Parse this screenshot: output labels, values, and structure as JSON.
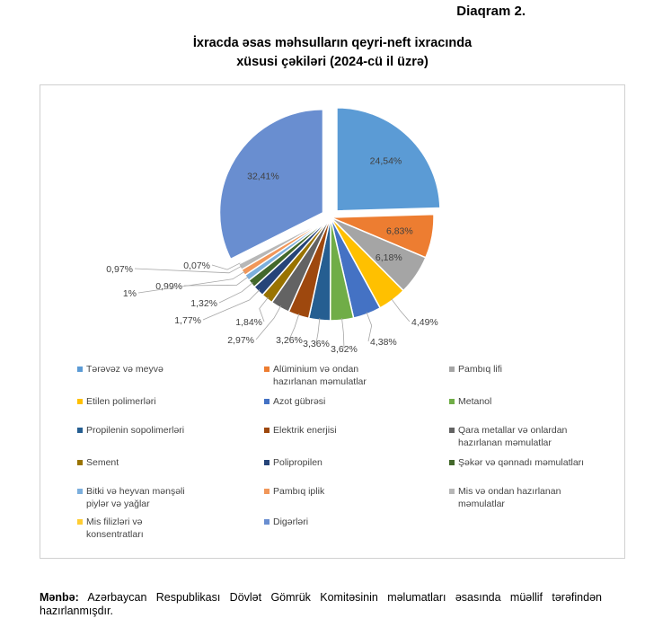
{
  "diagram_label": "Diaqram 2.",
  "chart_data": {
    "type": "pie",
    "title_line1": "İxracda əsas məhsulların qeyri-neft ixracında",
    "title_line2": "xüsusi çəkiləri (2024-cü il üzrə)",
    "slices": [
      {
        "name": "Tərəvəz və meyvə",
        "value": 24.54,
        "label": "24,54%",
        "color": "#5b9bd5"
      },
      {
        "name": "Alüminium və ondan\nhazırlanan məmulatlar",
        "value": 6.83,
        "label": "6,83%",
        "color": "#ed7d31"
      },
      {
        "name": "Pambıq lifi",
        "value": 6.18,
        "label": "6,18%",
        "color": "#a5a5a5"
      },
      {
        "name": "Etilen polimerləri",
        "value": 4.49,
        "label": "4,49%",
        "color": "#ffc000"
      },
      {
        "name": "Azot gübrəsi",
        "value": 4.38,
        "label": "4,38%",
        "color": "#4472c4"
      },
      {
        "name": "Metanol",
        "value": 3.62,
        "label": "3,62%",
        "color": "#70ad47"
      },
      {
        "name": "Propilenin sopolimerləri",
        "value": 3.36,
        "label": "3,36%",
        "color": "#255e91"
      },
      {
        "name": "Elektrik enerjisi",
        "value": 3.26,
        "label": "3,26%",
        "color": "#9e480e"
      },
      {
        "name": "Qara metallar və onlardan\nhazırlanan məmulatlar",
        "value": 2.97,
        "label": "2,97%",
        "color": "#636363"
      },
      {
        "name": "Sement",
        "value": 1.84,
        "label": "1,84%",
        "color": "#997300"
      },
      {
        "name": "Polipropilen",
        "value": 1.77,
        "label": "1,77%",
        "color": "#264478"
      },
      {
        "name": "Şəkər və qənnadı məmulatları",
        "value": 1.32,
        "label": "1,32%",
        "color": "#43682b"
      },
      {
        "name": "Bitki və heyvan mənşəli\npiylər və yağlar",
        "value": 0.99,
        "label": "0,99%",
        "color": "#7cafdd"
      },
      {
        "name": "Pambıq iplik",
        "value": 1.0,
        "label": "1%",
        "color": "#f1975a"
      },
      {
        "name": "Mis və ondan hazırlanan\nməmulatlar",
        "value": 0.97,
        "label": "0,97%",
        "color": "#b7b7b7"
      },
      {
        "name": "Mis filizləri və\nkonsentratları",
        "value": 0.07,
        "label": "0,07%",
        "color": "#ffcd33"
      },
      {
        "name": "Digərləri",
        "value": 32.41,
        "label": "32,41%",
        "color": "#698ed0"
      }
    ]
  },
  "source_label": "Mənbə:",
  "source_text": "Azərbaycan Respublikası Dövlət Gömrük Komitəsinin məlumatları əsasında müəllif tərəfindən hazırlanmışdır."
}
